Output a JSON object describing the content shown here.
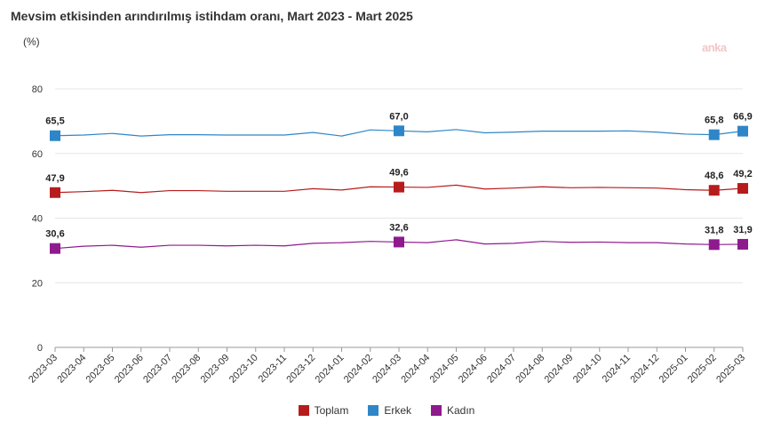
{
  "title": "Mevsim etkisinden arındırılmış istihdam oranı, Mart 2023 - Mart 2025",
  "unit": "(%)",
  "watermark": "anka",
  "chart_data": {
    "type": "line",
    "x": [
      "2023-03",
      "2023-04",
      "2023-05",
      "2023-06",
      "2023-07",
      "2023-08",
      "2023-09",
      "2023-10",
      "2023-11",
      "2023-12",
      "2024-01",
      "2024-02",
      "2024-03",
      "2024-04",
      "2024-05",
      "2024-06",
      "2024-07",
      "2024-08",
      "2024-09",
      "2024-10",
      "2024-11",
      "2024-12",
      "2025-01",
      "2025-02",
      "2025-03"
    ],
    "ylim": [
      0,
      80
    ],
    "yticks": [
      0,
      20,
      40,
      60,
      80
    ],
    "grid": "horizontal",
    "legend_position": "bottom",
    "series": [
      {
        "name": "Toplam",
        "color": "#b71c1c",
        "values": [
          47.9,
          48.2,
          48.6,
          47.9,
          48.5,
          48.5,
          48.3,
          48.3,
          48.3,
          49.1,
          48.7,
          49.7,
          49.6,
          49.5,
          50.2,
          49.0,
          49.3,
          49.7,
          49.4,
          49.5,
          49.4,
          49.3,
          48.8,
          48.6,
          49.2
        ]
      },
      {
        "name": "Erkek",
        "color": "#2e86c8",
        "values": [
          65.5,
          65.7,
          66.2,
          65.4,
          65.8,
          65.8,
          65.7,
          65.7,
          65.7,
          66.5,
          65.4,
          67.3,
          67.0,
          66.7,
          67.4,
          66.4,
          66.6,
          66.9,
          66.9,
          66.9,
          67.0,
          66.6,
          66.0,
          65.8,
          66.9
        ]
      },
      {
        "name": "Kadın",
        "color": "#8e1a8e",
        "values": [
          30.6,
          31.3,
          31.6,
          31.0,
          31.6,
          31.6,
          31.4,
          31.6,
          31.4,
          32.2,
          32.4,
          32.8,
          32.6,
          32.4,
          33.3,
          32.0,
          32.2,
          32.8,
          32.5,
          32.6,
          32.4,
          32.4,
          32.0,
          31.8,
          31.9
        ]
      }
    ],
    "markers": [
      0,
      12,
      23,
      24
    ],
    "data_labels": [
      {
        "series": 1,
        "index": 0,
        "text": "65,5"
      },
      {
        "series": 1,
        "index": 12,
        "text": "67,0"
      },
      {
        "series": 1,
        "index": 23,
        "text": "65,8"
      },
      {
        "series": 1,
        "index": 24,
        "text": "66,9"
      },
      {
        "series": 0,
        "index": 0,
        "text": "47,9"
      },
      {
        "series": 0,
        "index": 12,
        "text": "49,6"
      },
      {
        "series": 0,
        "index": 23,
        "text": "48,6"
      },
      {
        "series": 0,
        "index": 24,
        "text": "49,2"
      },
      {
        "series": 2,
        "index": 0,
        "text": "30,6"
      },
      {
        "series": 2,
        "index": 12,
        "text": "32,6"
      },
      {
        "series": 2,
        "index": 23,
        "text": "31,8"
      },
      {
        "series": 2,
        "index": 24,
        "text": "31,9"
      }
    ]
  }
}
